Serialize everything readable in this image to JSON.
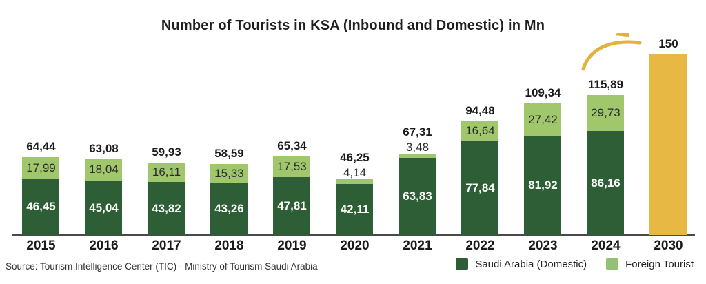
{
  "title": "Number of Tourists in KSA (Inbound and Domestic) in Mn",
  "source": "Source: Tourism Intelligence Center (TIC) - Ministry of Tourism Saudi Arabia",
  "legend": {
    "items": [
      {
        "label": "Saudi Arabia (Domestic)",
        "color": "#2e5c35"
      },
      {
        "label": "Foreign Tourist",
        "color": "#94c077"
      }
    ]
  },
  "colors": {
    "domestic": "#2e5e35",
    "foreign": "#a1c76c",
    "projection": "#e8b845",
    "arrow": "#e2b33c"
  },
  "bars": [
    {
      "year": "2015",
      "total_label": "64,44",
      "foreign_label": "17,99",
      "domestic_label": "46,45"
    },
    {
      "year": "2016",
      "total_label": "63,08",
      "foreign_label": "18,04",
      "domestic_label": "45,04"
    },
    {
      "year": "2017",
      "total_label": "59,93",
      "foreign_label": "16,11",
      "domestic_label": "43,82"
    },
    {
      "year": "2018",
      "total_label": "58,59",
      "foreign_label": "15,33",
      "domestic_label": "43,26"
    },
    {
      "year": "2019",
      "total_label": "65,34",
      "foreign_label": "17,53",
      "domestic_label": "47,81"
    },
    {
      "year": "2020",
      "total_label": "46,25",
      "foreign_label": "4,14",
      "domestic_label": "42,11"
    },
    {
      "year": "2021",
      "total_label": "67,31",
      "foreign_label": "3,48",
      "domestic_label": "63,83"
    },
    {
      "year": "2022",
      "total_label": "94,48",
      "foreign_label": "16,64",
      "domestic_label": "77,84"
    },
    {
      "year": "2023",
      "total_label": "109,34",
      "foreign_label": "27,42",
      "domestic_label": "81,92"
    },
    {
      "year": "2024",
      "total_label": "115,89",
      "foreign_label": "29,73",
      "domestic_label": "86,16"
    },
    {
      "year": "2030",
      "total_label": "150",
      "projection": true
    }
  ],
  "chart_data": {
    "type": "bar",
    "stacked": true,
    "title": "Number of Tourists in KSA (Inbound and Domestic) in Mn",
    "unit": "Mn",
    "categories": [
      "2015",
      "2016",
      "2017",
      "2018",
      "2019",
      "2020",
      "2021",
      "2022",
      "2023",
      "2024",
      "2030"
    ],
    "series": [
      {
        "name": "Saudi Arabia (Domestic)",
        "color": "#2e5e35",
        "values": [
          46.45,
          45.04,
          43.82,
          43.26,
          47.81,
          42.11,
          63.83,
          77.84,
          81.92,
          86.16,
          null
        ]
      },
      {
        "name": "Foreign Tourist",
        "color": "#a1c76c",
        "values": [
          17.99,
          18.04,
          16.11,
          15.33,
          17.53,
          4.14,
          3.48,
          16.64,
          27.42,
          29.73,
          null
        ]
      }
    ],
    "totals": [
      64.44,
      63.08,
      59.93,
      58.59,
      65.34,
      46.25,
      67.31,
      94.48,
      109.34,
      115.89,
      150
    ],
    "projection_year": "2030",
    "projection_value": 150,
    "projection_color": "#e8b845",
    "decimal_separator": ",",
    "ylim": [
      0,
      155
    ],
    "grid": false,
    "legend_position": "bottom-right"
  }
}
